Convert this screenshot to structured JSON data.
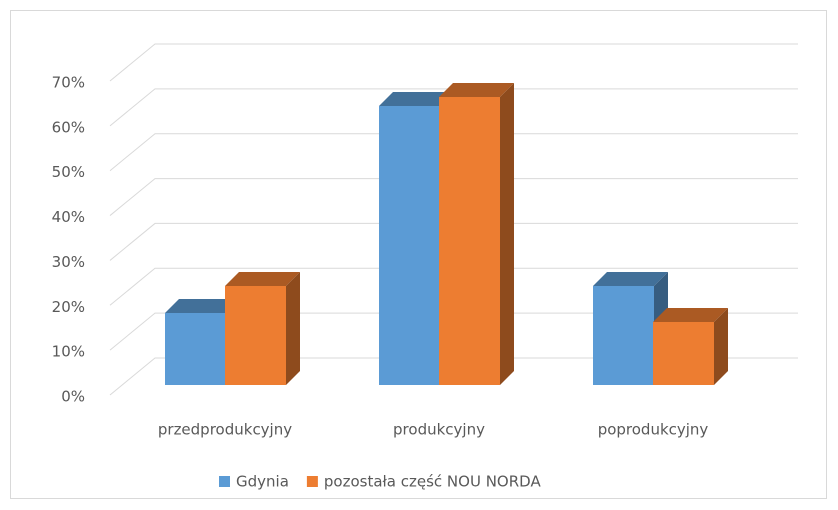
{
  "chart_data": {
    "type": "bar3d",
    "categories": [
      "przedprodukcyjny",
      "produkcyjny",
      "poprodukcyjny"
    ],
    "series": [
      {
        "name": "Gdynia",
        "color": "#5b9bd5",
        "values": [
          16,
          62,
          22
        ]
      },
      {
        "name": "pozostała część NOU NORDA",
        "color": "#ed7d31",
        "values": [
          22,
          64,
          14
        ]
      }
    ],
    "ylim": [
      0,
      70
    ],
    "yticks": [
      {
        "value": 0,
        "label": "0%"
      },
      {
        "value": 10,
        "label": "10%"
      },
      {
        "value": 20,
        "label": "20%"
      },
      {
        "value": 30,
        "label": "30%"
      },
      {
        "value": 40,
        "label": "40%"
      },
      {
        "value": 50,
        "label": "50%"
      },
      {
        "value": 60,
        "label": "60%"
      },
      {
        "value": 70,
        "label": "70%"
      }
    ],
    "grid": true,
    "legend": "bottom"
  }
}
